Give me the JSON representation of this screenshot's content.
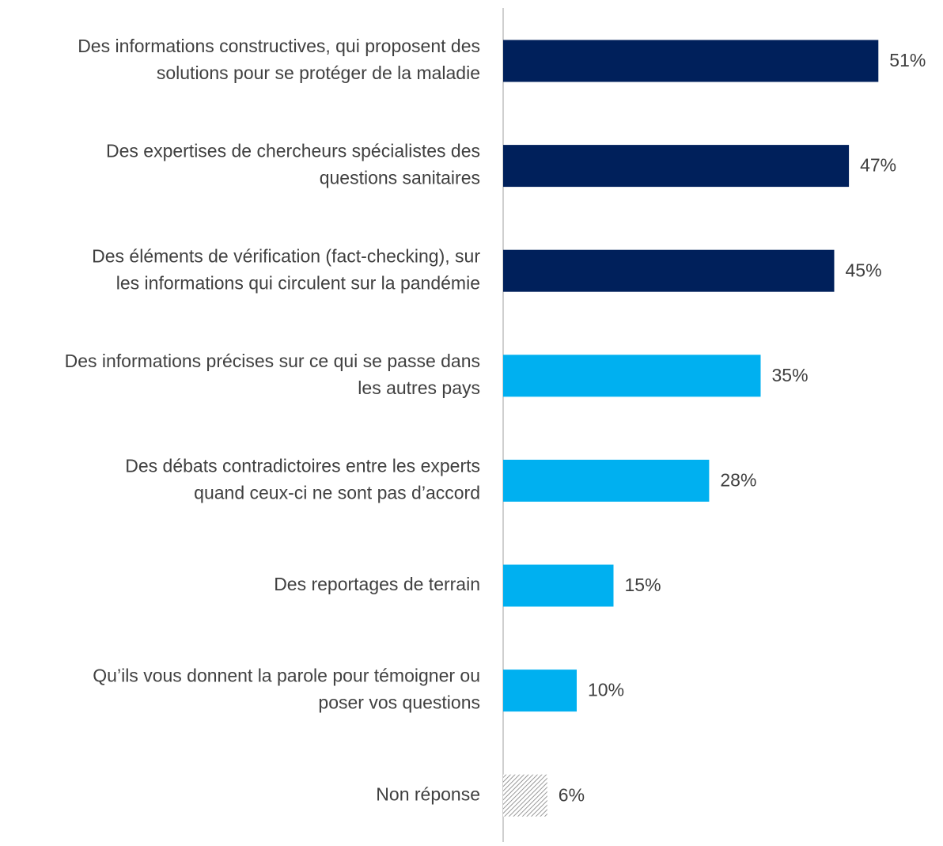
{
  "chart_data": {
    "type": "barh",
    "categories": [
      [
        "Des informations constructives, qui proposent des",
        "solutions pour se protéger de la maladie"
      ],
      [
        "Des expertises de chercheurs spécialistes des",
        "questions sanitaires"
      ],
      [
        "Des éléments de vérification (fact-checking), sur",
        "les informations qui circulent sur la pandémie"
      ],
      [
        "Des informations précises sur ce qui se passe dans",
        "les autres pays"
      ],
      [
        "Des débats contradictoires entre les experts",
        "quand ceux-ci ne sont pas d’accord"
      ],
      [
        "Des reportages de terrain"
      ],
      [
        "Qu’ils vous donnent la parole pour témoigner ou",
        "poser vos questions"
      ],
      [
        "Non réponse"
      ]
    ],
    "values": [
      51,
      47,
      45,
      35,
      28,
      15,
      10,
      6
    ],
    "value_labels": [
      "51%",
      "47%",
      "45%",
      "35%",
      "28%",
      "15%",
      "10%",
      "6%"
    ],
    "colors": [
      "#00205b",
      "#00205b",
      "#00205b",
      "#00b0f0",
      "#00b0f0",
      "#00b0f0",
      "#00b0f0",
      "#7f7f7f"
    ],
    "hatch": [
      false,
      false,
      false,
      false,
      false,
      false,
      false,
      true
    ],
    "xlim": [
      0,
      100
    ]
  }
}
